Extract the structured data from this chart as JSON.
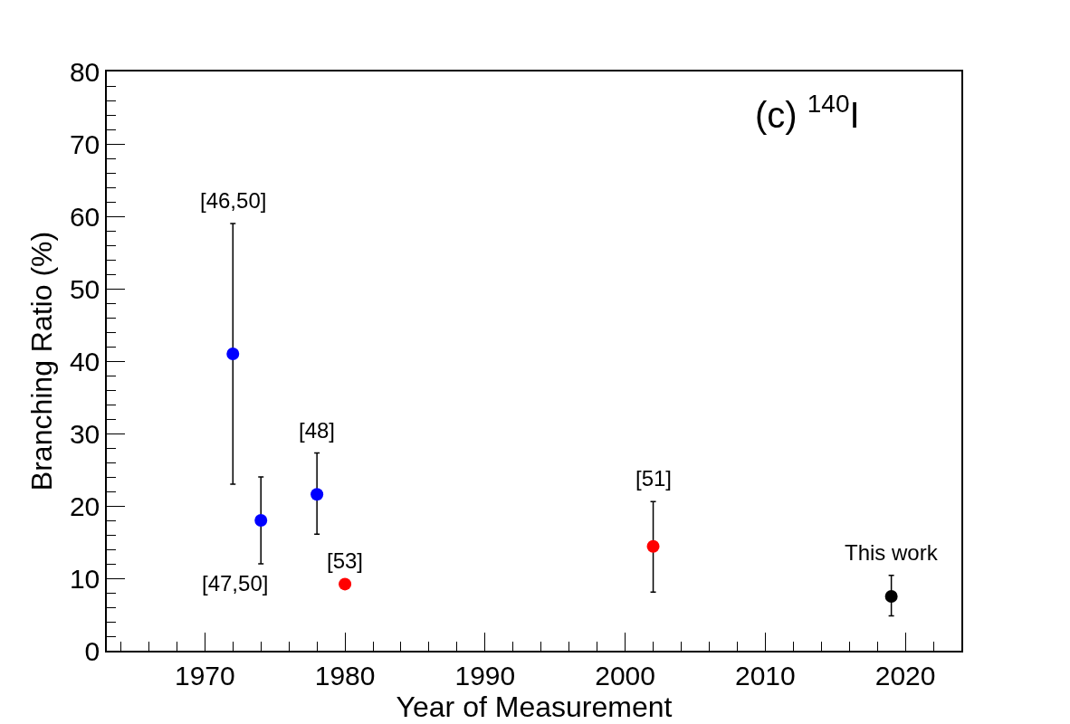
{
  "chart_data": {
    "type": "scatter",
    "xlabel": "Year of Measurement",
    "ylabel": "Branching Ratio (%)",
    "xlim": [
      1963,
      2024
    ],
    "xticks": [
      1970,
      1980,
      1990,
      2000,
      2010,
      2020
    ],
    "ylim": [
      0,
      80
    ],
    "yticks": [
      0,
      10,
      20,
      30,
      40,
      50,
      60,
      70,
      80
    ],
    "marker": "circle",
    "series": [
      {
        "color": "#0000ff",
        "x": [
          1972,
          1974,
          1978
        ],
        "values": [
          41,
          18,
          21.6
        ],
        "errors": [
          [
            23,
            59
          ],
          [
            12,
            24
          ],
          [
            16.1,
            27.3
          ]
        ]
      },
      {
        "color": "#ff0000",
        "x": [
          1980,
          2002
        ],
        "values": [
          9.2,
          14.4
        ],
        "errors": [
          null,
          [
            8.1,
            20.6
          ]
        ]
      },
      {
        "color": "#000000",
        "x": [
          2019
        ],
        "values": [
          7.5
        ],
        "errors": [
          [
            4.8,
            10.4
          ]
        ]
      }
    ],
    "annotations": [
      "(c) $^{140}$I",
      {
        "text": "[46,50]",
        "x": 1972,
        "y": 59
      },
      {
        "text": "[47,50]",
        "x": 1974,
        "y": 18
      },
      {
        "text": "[48]",
        "x": 1978,
        "y": 21.6
      },
      {
        "text": "[53]",
        "x": 1980,
        "y": 9.2
      },
      {
        "text": "[51]",
        "x": 2002,
        "y": 14.4
      },
      {
        "text": "This work",
        "x": 2019,
        "y": 7.5
      }
    ]
  }
}
